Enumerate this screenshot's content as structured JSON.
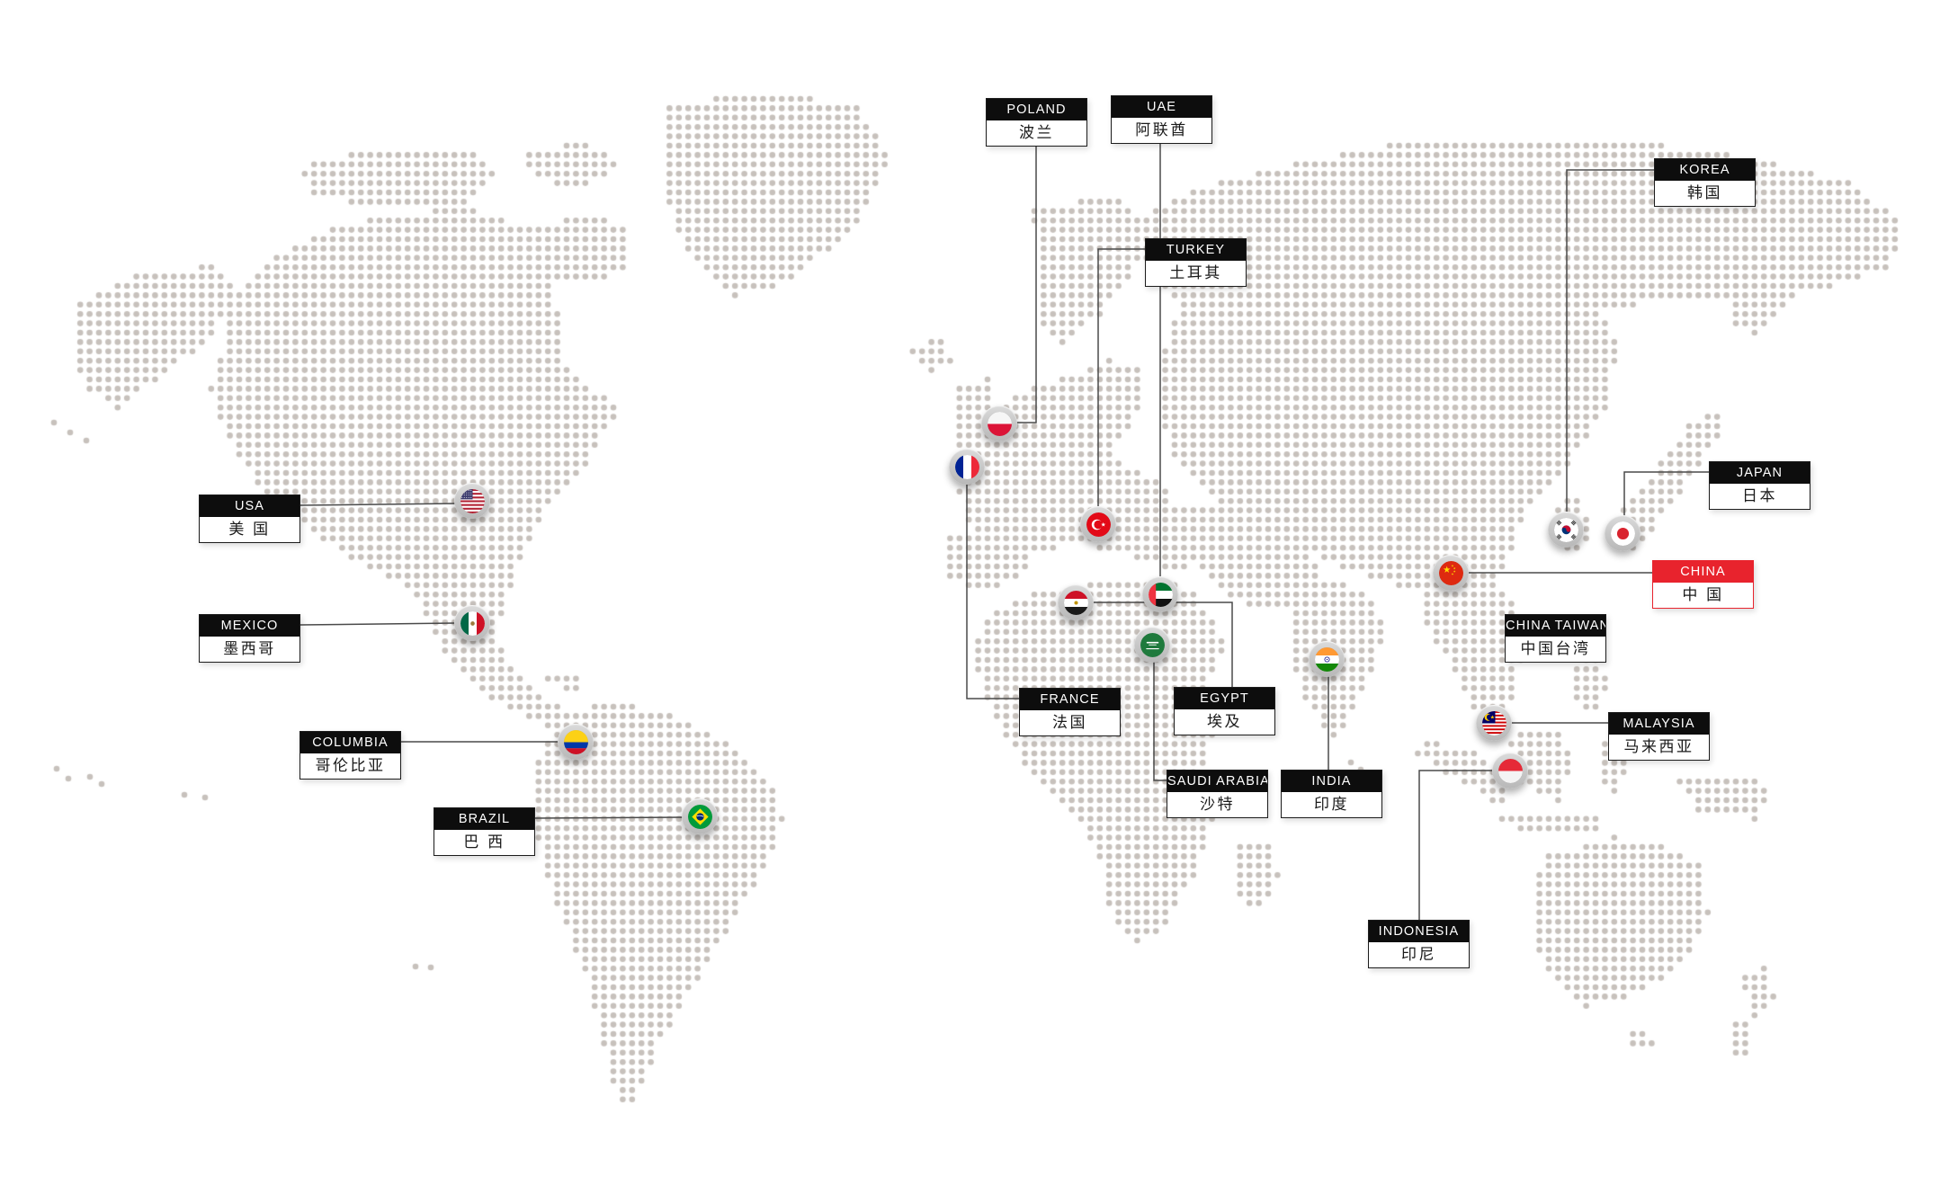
{
  "map": {
    "colors": {
      "dot": "#c7c1bc",
      "connector": "#4a4a4a",
      "label_black": "#0d0d0d",
      "accent_red": "#e8232d"
    },
    "countries": [
      {
        "id": "usa",
        "name_en": "USA",
        "name_zh": "美 国",
        "style": "black",
        "flag_icon": "usa-flag-icon"
      },
      {
        "id": "mexico",
        "name_en": "MEXICO",
        "name_zh": "墨西哥",
        "style": "black",
        "flag_icon": "mexico-flag-icon"
      },
      {
        "id": "columbia",
        "name_en": "COLUMBIA",
        "name_zh": "哥伦比亚",
        "style": "black",
        "flag_icon": "columbia-flag-icon"
      },
      {
        "id": "brazil",
        "name_en": "BRAZIL",
        "name_zh": "巴 西",
        "style": "black",
        "flag_icon": "brazil-flag-icon"
      },
      {
        "id": "poland",
        "name_en": "POLAND",
        "name_zh": "波兰",
        "style": "black",
        "flag_icon": "poland-flag-icon"
      },
      {
        "id": "france",
        "name_en": "FRANCE",
        "name_zh": "法国",
        "style": "black",
        "flag_icon": "france-flag-icon"
      },
      {
        "id": "turkey",
        "name_en": "TURKEY",
        "name_zh": "土耳其",
        "style": "black",
        "flag_icon": "turkey-flag-icon"
      },
      {
        "id": "egypt",
        "name_en": "EGYPT",
        "name_zh": "埃及",
        "style": "black",
        "flag_icon": "egypt-flag-icon"
      },
      {
        "id": "uae",
        "name_en": "UAE",
        "name_zh": "阿联酋",
        "style": "black",
        "flag_icon": "uae-flag-icon"
      },
      {
        "id": "saudi",
        "name_en": "SAUDI ARABIA",
        "name_zh": "沙特",
        "style": "black",
        "flag_icon": "saudi-flag-icon"
      },
      {
        "id": "india",
        "name_en": "INDIA",
        "name_zh": "印度",
        "style": "black",
        "flag_icon": "india-flag-icon"
      },
      {
        "id": "china",
        "name_en": "CHINA",
        "name_zh": "中 国",
        "style": "red",
        "flag_icon": "china-flag-icon"
      },
      {
        "id": "taiwan",
        "name_en": "CHINA TAIWAN",
        "name_zh": "中国台湾",
        "style": "black",
        "flag_icon": null
      },
      {
        "id": "korea",
        "name_en": "KOREA",
        "name_zh": "韩国",
        "style": "black",
        "flag_icon": "korea-flag-icon"
      },
      {
        "id": "japan",
        "name_en": "JAPAN",
        "name_zh": "日本",
        "style": "black",
        "flag_icon": "japan-flag-icon"
      },
      {
        "id": "malaysia",
        "name_en": "MALAYSIA",
        "name_zh": "马来西亚",
        "style": "black",
        "flag_icon": "malaysia-flag-icon"
      },
      {
        "id": "indonesia",
        "name_en": "INDONESIA",
        "name_zh": "印尼",
        "style": "black",
        "flag_icon": "indonesia-flag-icon"
      }
    ]
  }
}
